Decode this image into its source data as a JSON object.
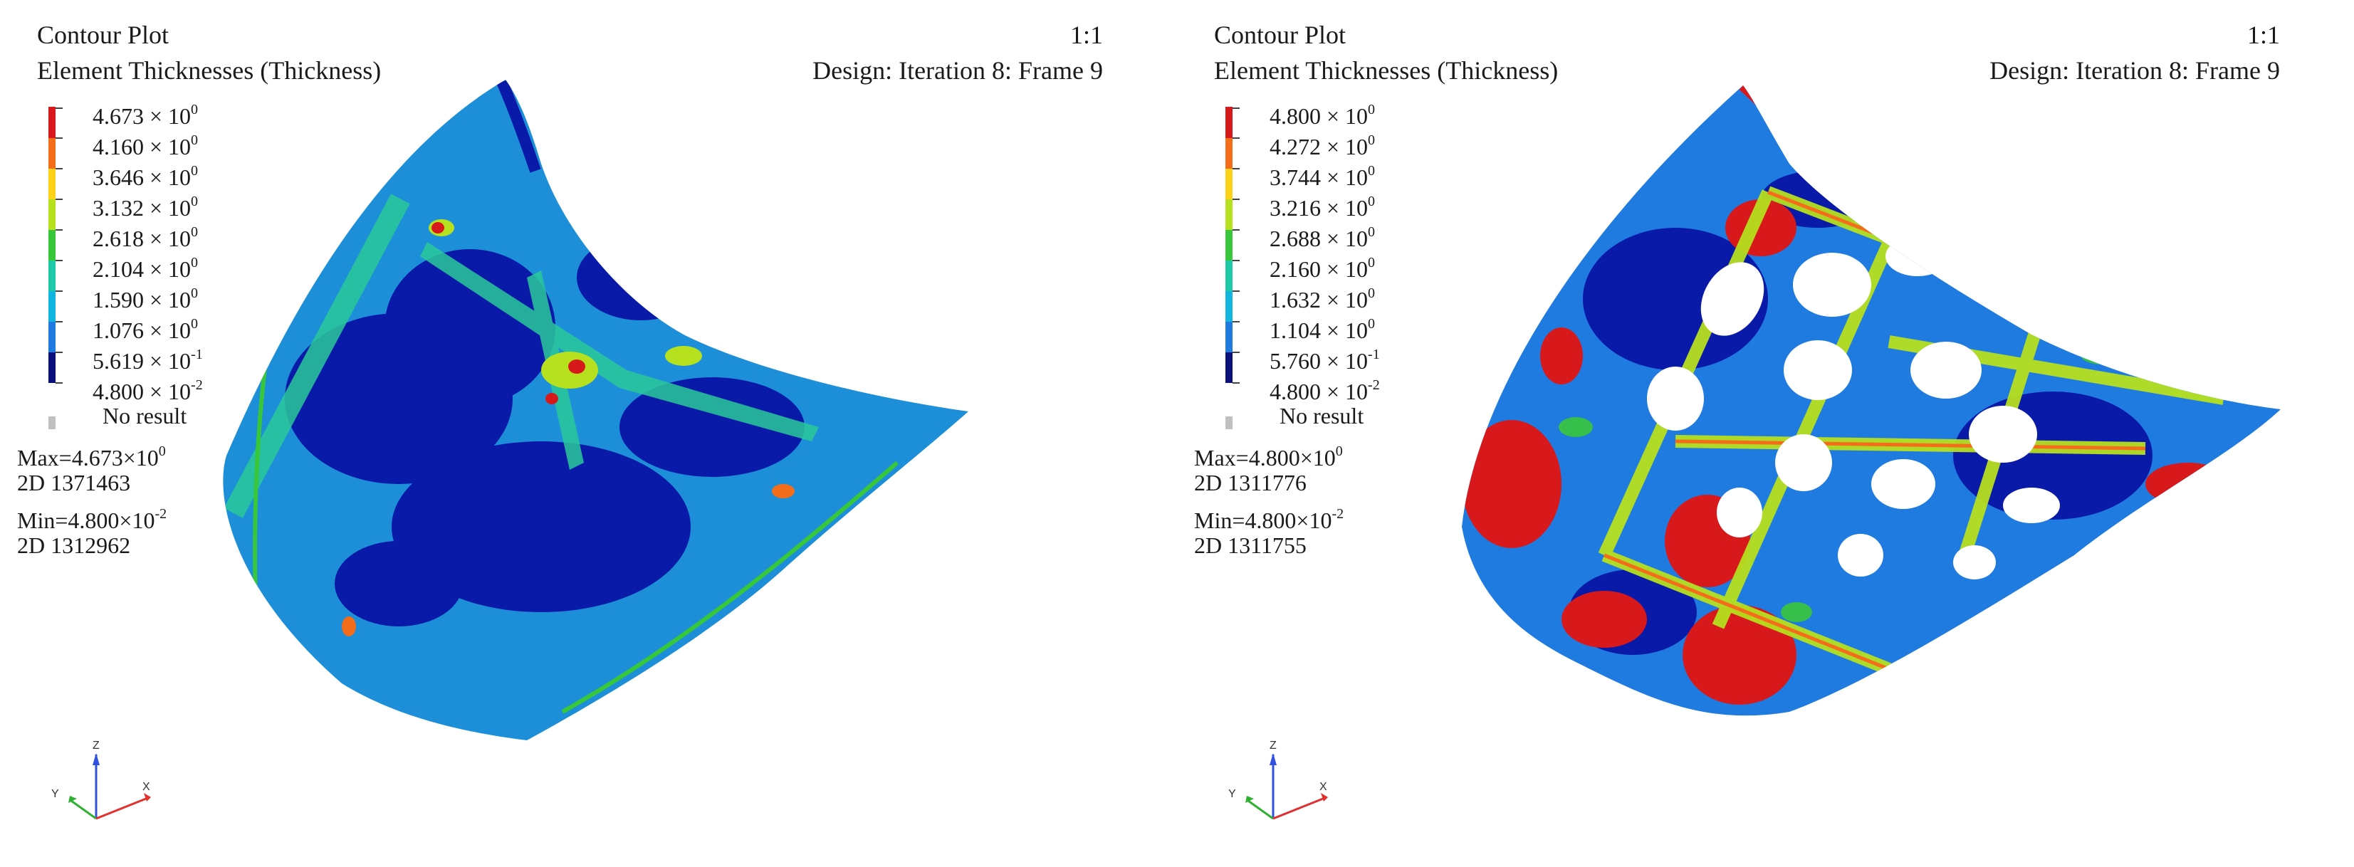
{
  "viewports": [
    {
      "title": "Contour Plot",
      "subtitle": "Element Thicknesses (Thickness)",
      "scale": "1:1",
      "design": "Design: Iteration 8: Frame 9",
      "legend": [
        {
          "mant": "4.673",
          "exp": "0"
        },
        {
          "mant": "4.160",
          "exp": "0"
        },
        {
          "mant": "3.646",
          "exp": "0"
        },
        {
          "mant": "3.132",
          "exp": "0"
        },
        {
          "mant": "2.618",
          "exp": "0"
        },
        {
          "mant": "2.104",
          "exp": "0"
        },
        {
          "mant": "1.590",
          "exp": "0"
        },
        {
          "mant": "1.076",
          "exp": "0"
        },
        {
          "mant": "5.619",
          "exp": "-1"
        },
        {
          "mant": "4.800",
          "exp": "-2"
        }
      ],
      "no_result": "No result",
      "max_label": "Max=4.673×10",
      "max_exp": "0",
      "max_elem": "2D 1371463",
      "min_label": "Min=4.800×10",
      "min_exp": "-2",
      "min_elem": "2D 1312962",
      "triad": {
        "z": "Z",
        "y": "Y",
        "x": "X"
      }
    },
    {
      "title": "Contour Plot",
      "subtitle": "Element Thicknesses (Thickness)",
      "scale": "1:1",
      "design": "Design: Iteration 8: Frame 9",
      "legend": [
        {
          "mant": "4.800",
          "exp": "0"
        },
        {
          "mant": "4.272",
          "exp": "0"
        },
        {
          "mant": "3.744",
          "exp": "0"
        },
        {
          "mant": "3.216",
          "exp": "0"
        },
        {
          "mant": "2.688",
          "exp": "0"
        },
        {
          "mant": "2.160",
          "exp": "0"
        },
        {
          "mant": "1.632",
          "exp": "0"
        },
        {
          "mant": "1.104",
          "exp": "0"
        },
        {
          "mant": "5.760",
          "exp": "-1"
        },
        {
          "mant": "4.800",
          "exp": "-2"
        }
      ],
      "no_result": "No result",
      "max_label": "Max=4.800×10",
      "max_exp": "0",
      "max_elem": "2D 1311776",
      "min_label": "Min=4.800×10",
      "min_exp": "-2",
      "min_elem": "2D 1311755",
      "triad": {
        "z": "Z",
        "y": "Y",
        "x": "X"
      }
    }
  ],
  "legend_colors": [
    "#d7191c",
    "#f46d1a",
    "#ffd21a",
    "#b7e01f",
    "#38c63a",
    "#1ec9a8",
    "#12b5e0",
    "#1f7be0",
    "#1230c8",
    "#0a0f7a"
  ],
  "no_result_color": "#c0c0c0"
}
